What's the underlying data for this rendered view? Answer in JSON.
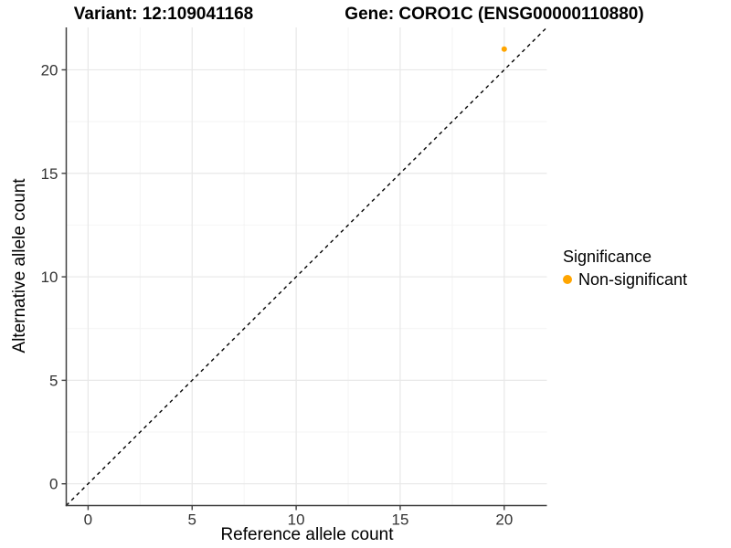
{
  "title": {
    "variant": "Variant: 12:109041168",
    "gene": "Gene: CORO1C (ENSG00000110880)"
  },
  "axes": {
    "x": {
      "label": "Reference allele count",
      "ticks": [
        "0",
        "5",
        "10",
        "15",
        "20"
      ]
    },
    "y": {
      "label": "Alternative allele count",
      "ticks": [
        "0",
        "5",
        "10",
        "15",
        "20"
      ]
    }
  },
  "legend": {
    "title": "Significance",
    "items": [
      {
        "label": "Non-significant",
        "color": "#FFA500",
        "marker": "circle"
      }
    ]
  },
  "chart_data": {
    "type": "scatter",
    "title": "Variant: 12:109041168 / Gene: CORO1C (ENSG00000110880)",
    "xlabel": "Reference allele count",
    "ylabel": "Alternative allele count",
    "xlim": [
      -1.05,
      22.05
    ],
    "ylim": [
      -1.05,
      22.05
    ],
    "x_ticks": [
      0,
      5,
      10,
      15,
      20
    ],
    "y_ticks": [
      0,
      5,
      10,
      15,
      20
    ],
    "x_minor_ticks": [
      2.5,
      7.5,
      12.5,
      17.5
    ],
    "y_minor_ticks": [
      2.5,
      7.5,
      12.5,
      17.5
    ],
    "grid": "major+minor",
    "legend_position": "right",
    "series": [
      {
        "name": "Non-significant",
        "color": "#FFA500",
        "point_radius": 3,
        "points": [
          {
            "x": 20,
            "y": 21
          }
        ]
      }
    ],
    "reference_line": {
      "kind": "identity y=x",
      "from": [
        -1.05,
        -1.05
      ],
      "to": [
        22.05,
        22.05
      ],
      "style": "dashed",
      "color": "#000000"
    }
  },
  "colors": {
    "background": "#FFFFFF",
    "point": "#FFA500",
    "axis_line": "#404040",
    "tick_text": "#333333",
    "grid_major": "#E8E8E8",
    "grid_minor": "#F4F4F4",
    "dashed_line": "#000000"
  }
}
